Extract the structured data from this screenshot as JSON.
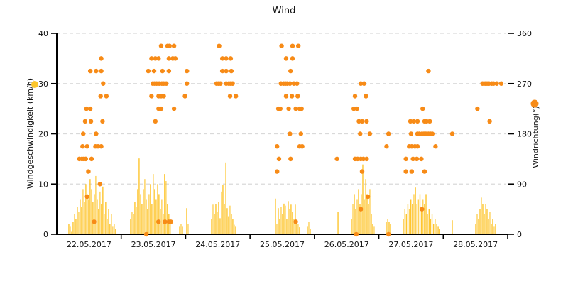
{
  "title": "Wind",
  "axes": {
    "left": {
      "label": "Windgeschwindigkeit (km/h)",
      "ticks": [
        0,
        10,
        20,
        30,
        40
      ],
      "max": 40
    },
    "right": {
      "label": "Windrichtung(°)",
      "ticks": [
        0,
        90,
        180,
        270,
        360
      ],
      "max": 360
    },
    "x": {
      "labels": [
        "22.05.2017",
        "23.05.2017",
        "24.05.2017",
        "25.05.2017",
        "26.05.2017",
        "27.05.2017",
        "28.05.2017"
      ],
      "days": 7
    }
  },
  "colors": {
    "speed": "#FEC52E",
    "speed_legend": "#FCC62B",
    "direction": "#F78B17",
    "grid": "#D9D9D9",
    "axis": "#000000"
  },
  "chart_data": {
    "type": "mixed",
    "title": "Wind",
    "x_unit": "days since 22.05.2017 00:00",
    "xlim": [
      0,
      7
    ],
    "ylim_left": [
      0,
      40
    ],
    "ylim_right": [
      0,
      360
    ],
    "grid": "dashed horizontal at left 10/20/30/40 (right 90/180/270/360)",
    "legend_position": "colored dots beside each axis title",
    "series": [
      {
        "name": "Windgeschwindigkeit",
        "type": "bar",
        "unit": "km/h",
        "axis": "left",
        "color": "#FEC52E",
        "clusters": [
          {
            "d0": 0.187,
            "step": 0.022,
            "h": [
              2,
              1.5,
              0.5,
              2.5,
              4,
              3,
              5.5,
              4.5,
              7,
              5.5,
              9,
              6.5,
              10,
              8,
              7,
              11,
              9,
              6.5,
              8,
              11.6,
              7,
              5,
              8.5,
              6,
              9.5,
              4,
              6.5,
              3,
              5,
              2,
              4,
              1.5,
              2,
              1
            ]
          },
          {
            "d0": 1.146,
            "step": 0.022,
            "h": [
              3,
              4.5,
              4,
              6.5,
              5.5,
              9,
              15.1,
              8,
              6,
              9,
              11,
              7,
              5,
              8,
              10,
              6,
              12,
              9,
              7,
              10,
              8,
              5,
              7,
              4,
              12,
              10.6,
              6,
              4,
              2
            ]
          },
          {
            "d0": 1.907,
            "step": 0.022,
            "h": [
              1.5,
              2,
              1.5
            ]
          },
          {
            "d0": 2.017,
            "step": 0.022,
            "h": [
              5.2,
              2
            ]
          },
          {
            "d0": 2.403,
            "step": 0.022,
            "h": [
              3,
              5.9,
              4,
              6,
              4.5,
              6.5,
              3.2,
              8.5,
              9.9,
              6,
              14.3,
              5.2,
              3.6,
              5.7,
              4,
              3,
              1.9,
              1.5
            ]
          },
          {
            "d0": 3.395,
            "step": 0.022,
            "h": [
              7.1,
              2,
              5.2,
              3,
              5.4,
              4,
              6.1,
              5.7,
              3,
              6.6,
              5,
              5.9,
              4.5,
              3,
              5.9,
              2.8,
              2,
              1.4
            ]
          },
          {
            "d0": 3.891,
            "step": 0.022,
            "h": [
              1.5,
              2.5,
              1
            ]
          },
          {
            "d0": 4.366,
            "step": 0.022,
            "h": [
              4.5
            ]
          },
          {
            "d0": 4.575,
            "step": 0.022,
            "h": [
              3,
              6,
              8,
              5,
              7,
              9,
              6,
              8,
              13.9,
              7,
              11,
              8,
              6,
              9,
              4,
              2,
              1.5
            ]
          },
          {
            "d0": 5.115,
            "step": 0.022,
            "h": [
              2.5,
              3,
              2.5,
              2
            ]
          },
          {
            "d0": 5.38,
            "step": 0.0235,
            "h": [
              3,
              5,
              4,
              6,
              5,
              7,
              6,
              8,
              9.3,
              6,
              7,
              8,
              5,
              7,
              6,
              8,
              4,
              5,
              3,
              4,
              2,
              3,
              2,
              1.5,
              1
            ]
          },
          {
            "d0": 6.14,
            "step": 0.022,
            "h": [
              2.8
            ]
          },
          {
            "d0": 6.504,
            "step": 0.022,
            "h": [
              2,
              4,
              3,
              5,
              7.3,
              6,
              4,
              6,
              5,
              3,
              4.5,
              2,
              3,
              1.5,
              2
            ]
          }
        ]
      },
      {
        "name": "Windrichtung",
        "type": "scatter",
        "unit": "°",
        "axis": "right",
        "color": "#F78B17",
        "points": [
          [
            0.35,
            135
          ],
          [
            0.39,
            135
          ],
          [
            0.42,
            135
          ],
          [
            0.45,
            135
          ],
          [
            0.54,
            135
          ],
          [
            0.4,
            157.5
          ],
          [
            0.47,
            157.5
          ],
          [
            0.6,
            157.5
          ],
          [
            0.64,
            157.5
          ],
          [
            0.69,
            157.5
          ],
          [
            0.41,
            180
          ],
          [
            0.61,
            180
          ],
          [
            0.44,
            202.5
          ],
          [
            0.53,
            202.5
          ],
          [
            0.71,
            202.5
          ],
          [
            0.46,
            225
          ],
          [
            0.52,
            225
          ],
          [
            0.68,
            247.5
          ],
          [
            0.77,
            247.5
          ],
          [
            0.72,
            270
          ],
          [
            0.52,
            292.5
          ],
          [
            0.61,
            292.5
          ],
          [
            0.69,
            292.5
          ],
          [
            0.69,
            315
          ],
          [
            0.49,
            112.5
          ],
          [
            0.67,
            90
          ],
          [
            0.47,
            67.5
          ],
          [
            0.58,
            22.5
          ],
          [
            1.62,
            337.5
          ],
          [
            1.72,
            337.5
          ],
          [
            1.75,
            337.5
          ],
          [
            1.82,
            337.5
          ],
          [
            1.47,
            315
          ],
          [
            1.53,
            315
          ],
          [
            1.58,
            315
          ],
          [
            1.74,
            315
          ],
          [
            1.8,
            315
          ],
          [
            1.84,
            315
          ],
          [
            1.42,
            292.5
          ],
          [
            1.51,
            292.5
          ],
          [
            1.64,
            292.5
          ],
          [
            1.74,
            292.5
          ],
          [
            2.02,
            292.5
          ],
          [
            1.49,
            270
          ],
          [
            1.52,
            270
          ],
          [
            1.55,
            270
          ],
          [
            1.59,
            270
          ],
          [
            1.63,
            270
          ],
          [
            1.66,
            270
          ],
          [
            1.7,
            270
          ],
          [
            2.02,
            270
          ],
          [
            1.47,
            247.5
          ],
          [
            1.58,
            247.5
          ],
          [
            1.62,
            247.5
          ],
          [
            1.66,
            247.5
          ],
          [
            1.99,
            247.5
          ],
          [
            1.58,
            225
          ],
          [
            1.62,
            225
          ],
          [
            1.82,
            225
          ],
          [
            1.53,
            202.5
          ],
          [
            1.58,
            22.5
          ],
          [
            1.68,
            22.5
          ],
          [
            1.74,
            22.5
          ],
          [
            1.77,
            22.5
          ],
          [
            1.39,
            0
          ],
          [
            2.52,
            337.5
          ],
          [
            2.57,
            315
          ],
          [
            2.63,
            315
          ],
          [
            2.7,
            315
          ],
          [
            2.57,
            292.5
          ],
          [
            2.63,
            292.5
          ],
          [
            2.71,
            292.5
          ],
          [
            2.48,
            270
          ],
          [
            2.51,
            270
          ],
          [
            2.54,
            270
          ],
          [
            2.63,
            270
          ],
          [
            2.67,
            270
          ],
          [
            2.7,
            270
          ],
          [
            2.73,
            270
          ],
          [
            2.69,
            247.5
          ],
          [
            2.78,
            247.5
          ],
          [
            3.49,
            337.5
          ],
          [
            3.66,
            337.5
          ],
          [
            3.75,
            337.5
          ],
          [
            3.56,
            315
          ],
          [
            3.66,
            315
          ],
          [
            3.63,
            292.5
          ],
          [
            3.48,
            270
          ],
          [
            3.52,
            270
          ],
          [
            3.55,
            270
          ],
          [
            3.58,
            270
          ],
          [
            3.62,
            270
          ],
          [
            3.68,
            270
          ],
          [
            3.73,
            270
          ],
          [
            3.56,
            247.5
          ],
          [
            3.65,
            247.5
          ],
          [
            3.74,
            247.5
          ],
          [
            3.44,
            225
          ],
          [
            3.47,
            225
          ],
          [
            3.6,
            225
          ],
          [
            3.71,
            225
          ],
          [
            3.77,
            225
          ],
          [
            3.8,
            225
          ],
          [
            3.62,
            180
          ],
          [
            3.79,
            180
          ],
          [
            3.42,
            157.5
          ],
          [
            3.77,
            157.5
          ],
          [
            3.81,
            157.5
          ],
          [
            3.45,
            135
          ],
          [
            3.63,
            135
          ],
          [
            3.42,
            112.5
          ],
          [
            3.71,
            22.5
          ],
          [
            4.72,
            270
          ],
          [
            4.77,
            270
          ],
          [
            4.63,
            247.5
          ],
          [
            4.8,
            247.5
          ],
          [
            4.61,
            225
          ],
          [
            4.66,
            225
          ],
          [
            4.69,
            202.5
          ],
          [
            4.74,
            202.5
          ],
          [
            4.81,
            202.5
          ],
          [
            4.71,
            180
          ],
          [
            4.86,
            180
          ],
          [
            4.35,
            135
          ],
          [
            4.63,
            135
          ],
          [
            4.67,
            135
          ],
          [
            4.72,
            135
          ],
          [
            4.76,
            135
          ],
          [
            4.81,
            135
          ],
          [
            4.74,
            112.5
          ],
          [
            4.83,
            67.5
          ],
          [
            4.72,
            45
          ],
          [
            4.65,
            0
          ],
          [
            5.77,
            292.5
          ],
          [
            5.68,
            225
          ],
          [
            5.49,
            202.5
          ],
          [
            5.54,
            202.5
          ],
          [
            5.6,
            202.5
          ],
          [
            5.71,
            202.5
          ],
          [
            5.74,
            202.5
          ],
          [
            5.79,
            202.5
          ],
          [
            5.15,
            180
          ],
          [
            5.5,
            180
          ],
          [
            5.6,
            180
          ],
          [
            5.63,
            180
          ],
          [
            5.67,
            180
          ],
          [
            5.7,
            180
          ],
          [
            5.73,
            180
          ],
          [
            5.77,
            180
          ],
          [
            5.8,
            180
          ],
          [
            5.83,
            180
          ],
          [
            5.12,
            157.5
          ],
          [
            5.47,
            157.5
          ],
          [
            5.51,
            157.5
          ],
          [
            5.56,
            157.5
          ],
          [
            5.6,
            157.5
          ],
          [
            5.88,
            157.5
          ],
          [
            5.42,
            135
          ],
          [
            5.53,
            135
          ],
          [
            5.59,
            135
          ],
          [
            5.66,
            135
          ],
          [
            5.42,
            112.5
          ],
          [
            5.51,
            112.5
          ],
          [
            5.71,
            112.5
          ],
          [
            5.67,
            45
          ],
          [
            5.15,
            0
          ],
          [
            6.61,
            270
          ],
          [
            6.65,
            270
          ],
          [
            6.68,
            270
          ],
          [
            6.71,
            270
          ],
          [
            6.75,
            270
          ],
          [
            6.78,
            270
          ],
          [
            6.83,
            270
          ],
          [
            6.9,
            270
          ],
          [
            6.53,
            225
          ],
          [
            6.72,
            202.5
          ],
          [
            6.14,
            180
          ]
        ]
      }
    ]
  }
}
